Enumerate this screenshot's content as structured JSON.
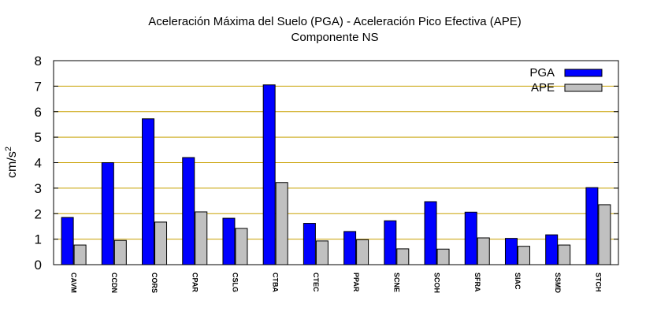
{
  "chart_data": {
    "type": "bar",
    "title_lines": [
      "Aceleración Máxima del Suelo (PGA) -  Aceleración Pico Efectiva (APE)",
      "Componente NS"
    ],
    "xlabel": "",
    "ylabel": "cm/s",
    "ylabel_superscript": "2",
    "ylim": [
      0,
      8
    ],
    "yticks": [
      0,
      1,
      2,
      3,
      4,
      5,
      6,
      7,
      8
    ],
    "grid": true,
    "legend_position": "top-right",
    "categories": [
      "CAVM",
      "CCDN",
      "CORS",
      "CPAR",
      "CSLG",
      "CTBA",
      "CTEC",
      "PPAR",
      "SCNE",
      "SCOH",
      "SFRA",
      "SIAC",
      "SSMD",
      "STCH"
    ],
    "series": [
      {
        "name": "PGA",
        "color": "#0000ff",
        "values": [
          1.85,
          4.0,
          5.72,
          4.2,
          1.82,
          7.05,
          1.62,
          1.3,
          1.72,
          2.47,
          2.06,
          1.03,
          1.17,
          3.02
        ]
      },
      {
        "name": "APE",
        "color": "#c0c0c0",
        "values": [
          0.77,
          0.95,
          1.67,
          2.07,
          1.42,
          3.22,
          0.93,
          0.98,
          0.62,
          0.61,
          1.05,
          0.72,
          0.77,
          2.35
        ]
      }
    ],
    "colors": {
      "grid": "#c8a000",
      "axis": "#000000"
    }
  }
}
